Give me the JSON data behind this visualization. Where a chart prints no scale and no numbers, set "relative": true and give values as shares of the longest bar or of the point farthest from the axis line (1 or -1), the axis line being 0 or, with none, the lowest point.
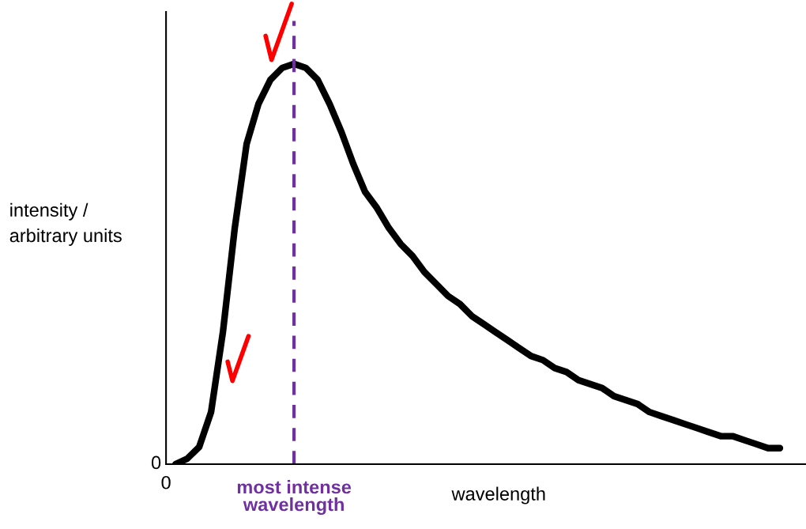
{
  "chart_data": {
    "type": "line",
    "relative": true,
    "ylabel": "intensity /\narbitrary units",
    "xlabel": "wavelength",
    "categories": [
      null,
      null,
      null,
      null,
      null,
      null,
      null,
      null,
      null,
      null,
      null,
      null,
      null,
      null,
      null,
      null,
      null,
      null,
      null,
      null,
      null,
      null,
      null,
      null,
      null,
      null,
      null,
      null,
      null,
      null,
      null,
      null,
      null,
      null,
      null,
      null,
      null,
      null,
      null,
      null,
      null,
      null,
      null,
      null,
      null,
      null,
      null,
      null,
      null,
      null,
      null,
      null
    ],
    "series": [
      {
        "color": "#000000",
        "values": [
          0,
          0.014,
          0.043,
          0.13,
          0.33,
          0.59,
          0.8,
          0.9,
          0.96,
          0.99,
          1.0,
          0.99,
          0.96,
          0.9,
          0.83,
          0.75,
          0.68,
          0.64,
          0.59,
          0.55,
          0.52,
          0.48,
          0.45,
          0.42,
          0.4,
          0.37,
          0.35,
          0.33,
          0.31,
          0.29,
          0.27,
          0.26,
          0.24,
          0.23,
          0.21,
          0.2,
          0.19,
          0.17,
          0.16,
          0.15,
          0.13,
          0.12,
          0.11,
          0.1,
          0.09,
          0.08,
          0.07,
          0.07,
          0.06,
          0.05,
          0.04,
          0.04
        ]
      }
    ],
    "annotations": [
      "0",
      "0",
      "most intense wavelength"
    ],
    "legend": false,
    "marker": "none",
    "line_style": "solid"
  }
}
